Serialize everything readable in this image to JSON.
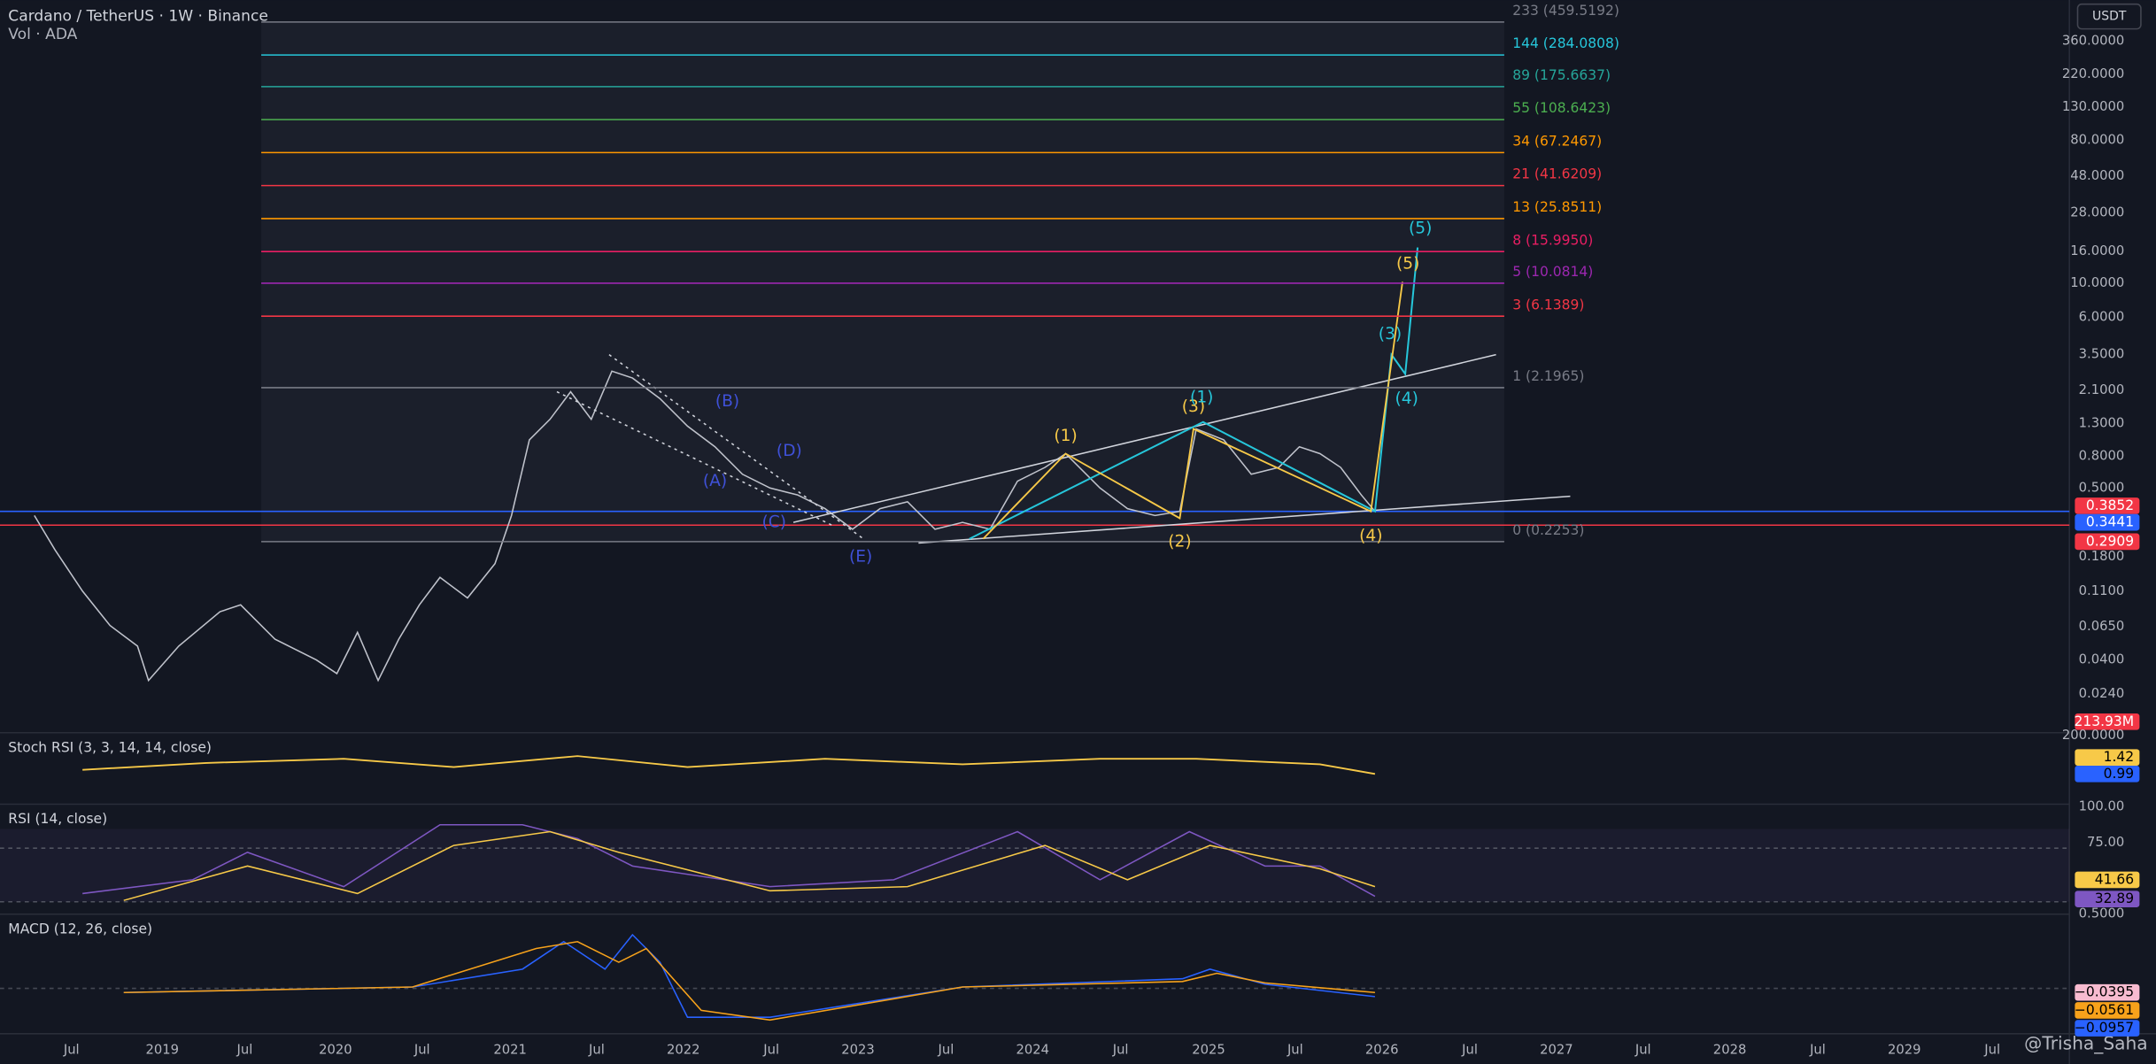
{
  "header": {
    "title": "Cardano / TetherUS · 1W · Binance",
    "volume": "Vol · ADA",
    "currency": "USDT"
  },
  "fib_levels": [
    {
      "label": "233 (459.5192)",
      "color": "#787b86"
    },
    {
      "label": "144 (284.0808)",
      "color": "#26c6da"
    },
    {
      "label": "89 (175.6637)",
      "color": "#26a69a"
    },
    {
      "label": "55 (108.6423)",
      "color": "#4caf50"
    },
    {
      "label": "34 (67.2467)",
      "color": "#ff9800"
    },
    {
      "label": "21 (41.6209)",
      "color": "#f23645"
    },
    {
      "label": "13 (25.8511)",
      "color": "#ff9800"
    },
    {
      "label": "8 (15.9950)",
      "color": "#e91e63"
    },
    {
      "label": "5 (10.0814)",
      "color": "#9c27b0"
    },
    {
      "label": "3 (6.1389)",
      "color": "#f23645"
    },
    {
      "label": "1 (2.1965)",
      "color": "#787b86"
    },
    {
      "label": "0 (0.2253)",
      "color": "#787b86"
    }
  ],
  "price_axis": [
    "360.0000",
    "220.0000",
    "130.0000",
    "80.0000",
    "48.0000",
    "28.0000",
    "16.0000",
    "10.0000",
    "6.0000",
    "3.5000",
    "2.1000",
    "1.3000",
    "0.8000",
    "0.5000",
    "0.1800",
    "0.1100",
    "0.0650",
    "0.0400",
    "0.0240"
  ],
  "price_badges": [
    {
      "label": "0.3852",
      "color": "#f23645"
    },
    {
      "label": "0.3441",
      "color": "#2962ff"
    },
    {
      "label": "0.2909",
      "color": "#f23645"
    },
    {
      "label": "213.93M",
      "color": "#f23645"
    }
  ],
  "waves": [
    {
      "label": "(B)",
      "color": "#3f51d8"
    },
    {
      "label": "(D)",
      "color": "#3f51d8"
    },
    {
      "label": "(A)",
      "color": "#3f51d8"
    },
    {
      "label": "(C)",
      "color": "#3f51d8"
    },
    {
      "label": "(E)",
      "color": "#3f51d8"
    },
    {
      "label": "(1)",
      "color": "#f7c948"
    },
    {
      "label": "(2)",
      "color": "#f7c948"
    },
    {
      "label": "(3)",
      "color": "#f7c948"
    },
    {
      "label": "(1)",
      "color": "#26c6da"
    },
    {
      "label": "(4)",
      "color": "#f7c948"
    },
    {
      "label": "(4)",
      "color": "#26c6da"
    },
    {
      "label": "(3)",
      "color": "#26c6da"
    },
    {
      "label": "(5)",
      "color": "#f7c948"
    },
    {
      "label": "(5)",
      "color": "#26c6da"
    }
  ],
  "panes": [
    {
      "title": "Stoch RSI (3, 3, 14, 14, close)",
      "axis": [
        "200.0000"
      ],
      "badges": [
        {
          "label": "1.42",
          "color": "#f7c948"
        },
        {
          "label": "0.99",
          "color": "#2962ff"
        }
      ]
    },
    {
      "title": "RSI (14, close)",
      "axis": [
        "100.00",
        "75.00",
        "0.5000"
      ],
      "badges": [
        {
          "label": "41.66",
          "color": "#f7c948"
        },
        {
          "label": "32.89",
          "color": "#7e57c2"
        }
      ]
    },
    {
      "title": "MACD (12, 26, close)",
      "axis": [],
      "badges": [
        {
          "label": "−0.0395",
          "color": "#f8bbd0"
        },
        {
          "label": "−0.0561",
          "color": "#f7a21b"
        },
        {
          "label": "−0.0957",
          "color": "#2962ff"
        }
      ]
    }
  ],
  "time_axis": [
    "Jul",
    "2019",
    "Jul",
    "2020",
    "Jul",
    "2021",
    "Jul",
    "2022",
    "Jul",
    "2023",
    "Jul",
    "2024",
    "Jul",
    "2025",
    "Jul",
    "2026",
    "Jul",
    "2027",
    "Jul",
    "2028",
    "Jul",
    "2029",
    "Jul"
  ],
  "watermark": "@Trisha_Saha"
}
